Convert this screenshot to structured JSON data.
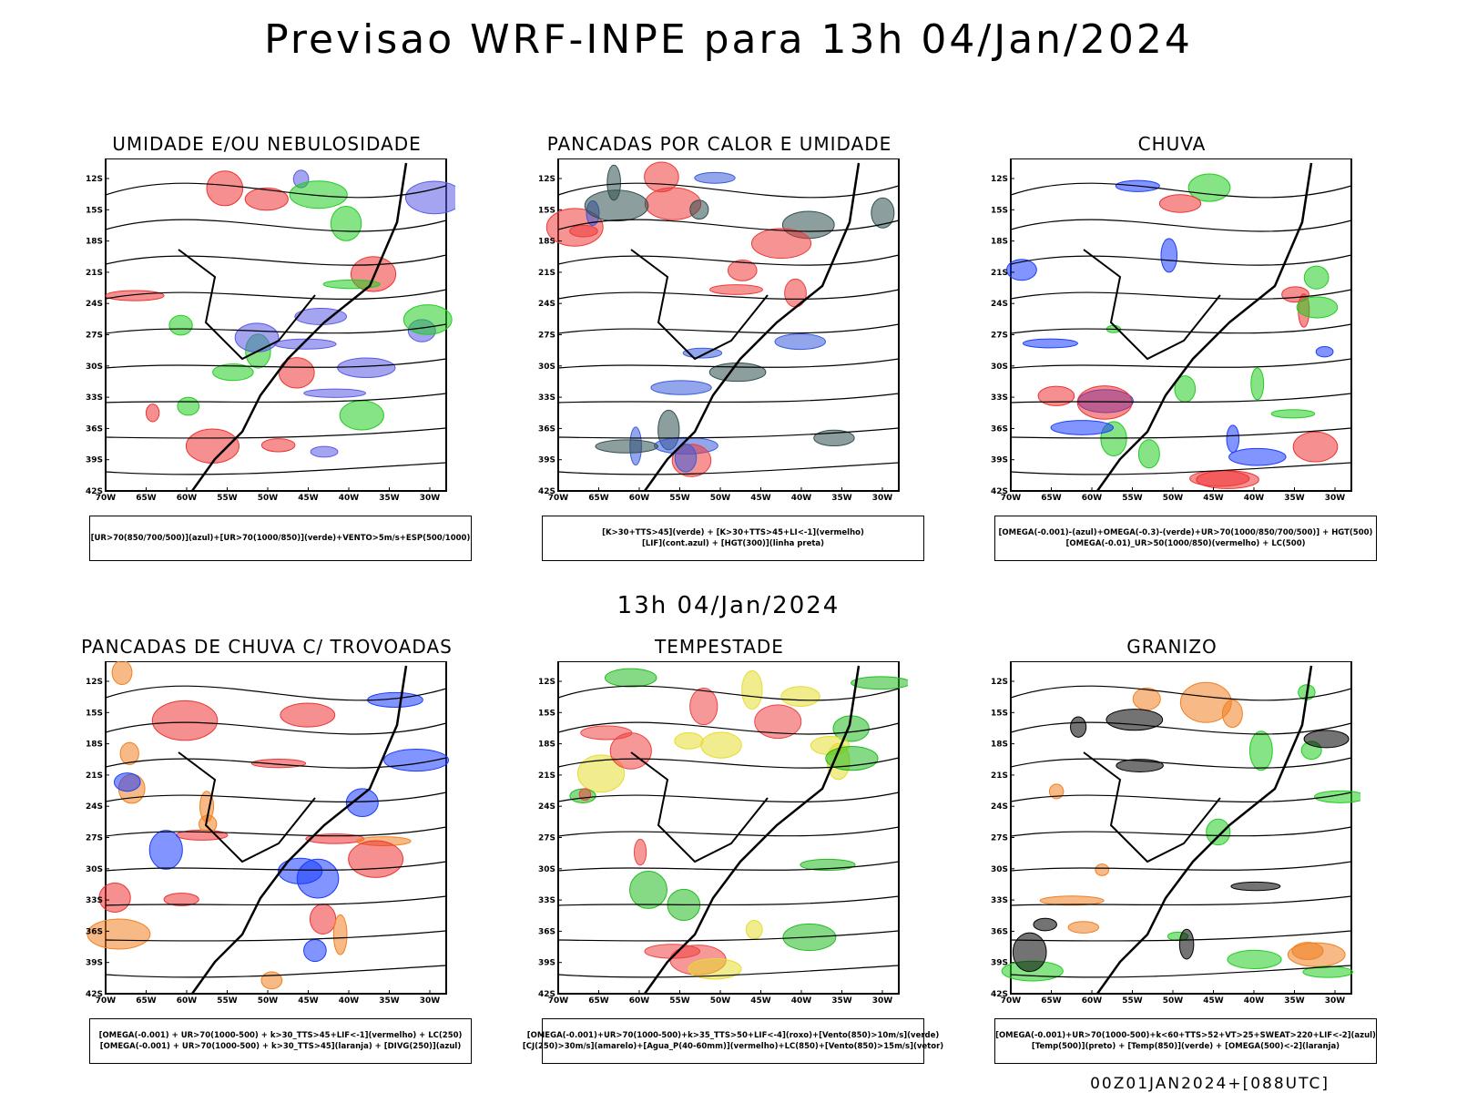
{
  "header": {
    "title": "Previsao WRF-INPE  para 13h 04/Jan/2024",
    "mid_title": "13h 04/Jan/2024",
    "footer": "00Z01JAN2024+[088UTC]"
  },
  "axes": {
    "lat_labels": [
      "12S",
      "15S",
      "18S",
      "21S",
      "24S",
      "27S",
      "30S",
      "33S",
      "36S",
      "39S",
      "42S"
    ],
    "lon_labels": [
      "70W",
      "65W",
      "60W",
      "55W",
      "50W",
      "45W",
      "40W",
      "35W",
      "30W"
    ]
  },
  "panels": [
    {
      "title": "UMIDADE E/OU NEBULOSIDADE",
      "legend": [
        "[UR>70(850/700/500)](azul)+[UR>70(1000/850)](verde)+VENTO>5m/s+ESP(500/1000)"
      ],
      "colors": [
        "#5a5ae6",
        "#22cc22",
        "#ee3333"
      ]
    },
    {
      "title": "PANCADAS POR CALOR E UMIDADE",
      "legend": [
        "[K>30+TTS>45](verde)  +  [K>30+TTS>45+LI<-1](vermelho)",
        "[LIF](cont.azul)  +  [HGT(300)](linha preta)"
      ],
      "colors": [
        "#ee3b3b",
        "#2f4f4f",
        "#3b5bdb"
      ]
    },
    {
      "title": "CHUVA",
      "legend": [
        "[OMEGA(-0.001)-(azul)+OMEGA(-0.3)-(verde)+UR>70(1000/850/700/500)]  +  HGT(500)",
        "[OMEGA(-0.01)_UR>50(1000/850)(vermelho)  +  LC(500)"
      ],
      "colors": [
        "#1a3cff",
        "#22cc22",
        "#ee3333"
      ]
    },
    {
      "title": "PANCADAS DE CHUVA C/ TROVOADAS",
      "legend": [
        "[OMEGA(-0.001) + UR>70(1000-500) + k>30_TTS>45+LIF<-1](vermelho) + LC(250)",
        "[OMEGA(-0.001) + UR>70(1000-500) + k>30_TTS>45](laranja)  +  [DIVG(250)](azul)"
      ],
      "colors": [
        "#ee3333",
        "#f08020",
        "#1a3cff"
      ]
    },
    {
      "title": "TEMPESTADE",
      "legend": [
        "[OMEGA(-0.001)+UR>70(1000-500)+k>35_TTS>50+LIF<-4](roxo)+[Vento(850)>10m/s](verde)",
        "[CJ(250)>30m/s](amarelo)+[Agua_P(40-60mm)](vermelho)+LC(850)+[Vento(850)>15m/s](vetor)"
      ],
      "colors": [
        "#22bb22",
        "#e6dc30",
        "#ee4444"
      ]
    },
    {
      "title": "GRANIZO",
      "legend": [
        "[OMEGA(-0.001)+UR>70(1000-500)+k<60+TTS>52+VT>25+SWEAT>220+LIF<-2](azul)",
        "[Temp(500)](preto)  +  [Temp(850)](verde)  +  [OMEGA(500)<-2](laranja)"
      ],
      "colors": [
        "#22cc22",
        "#f08020",
        "#000000"
      ]
    }
  ]
}
